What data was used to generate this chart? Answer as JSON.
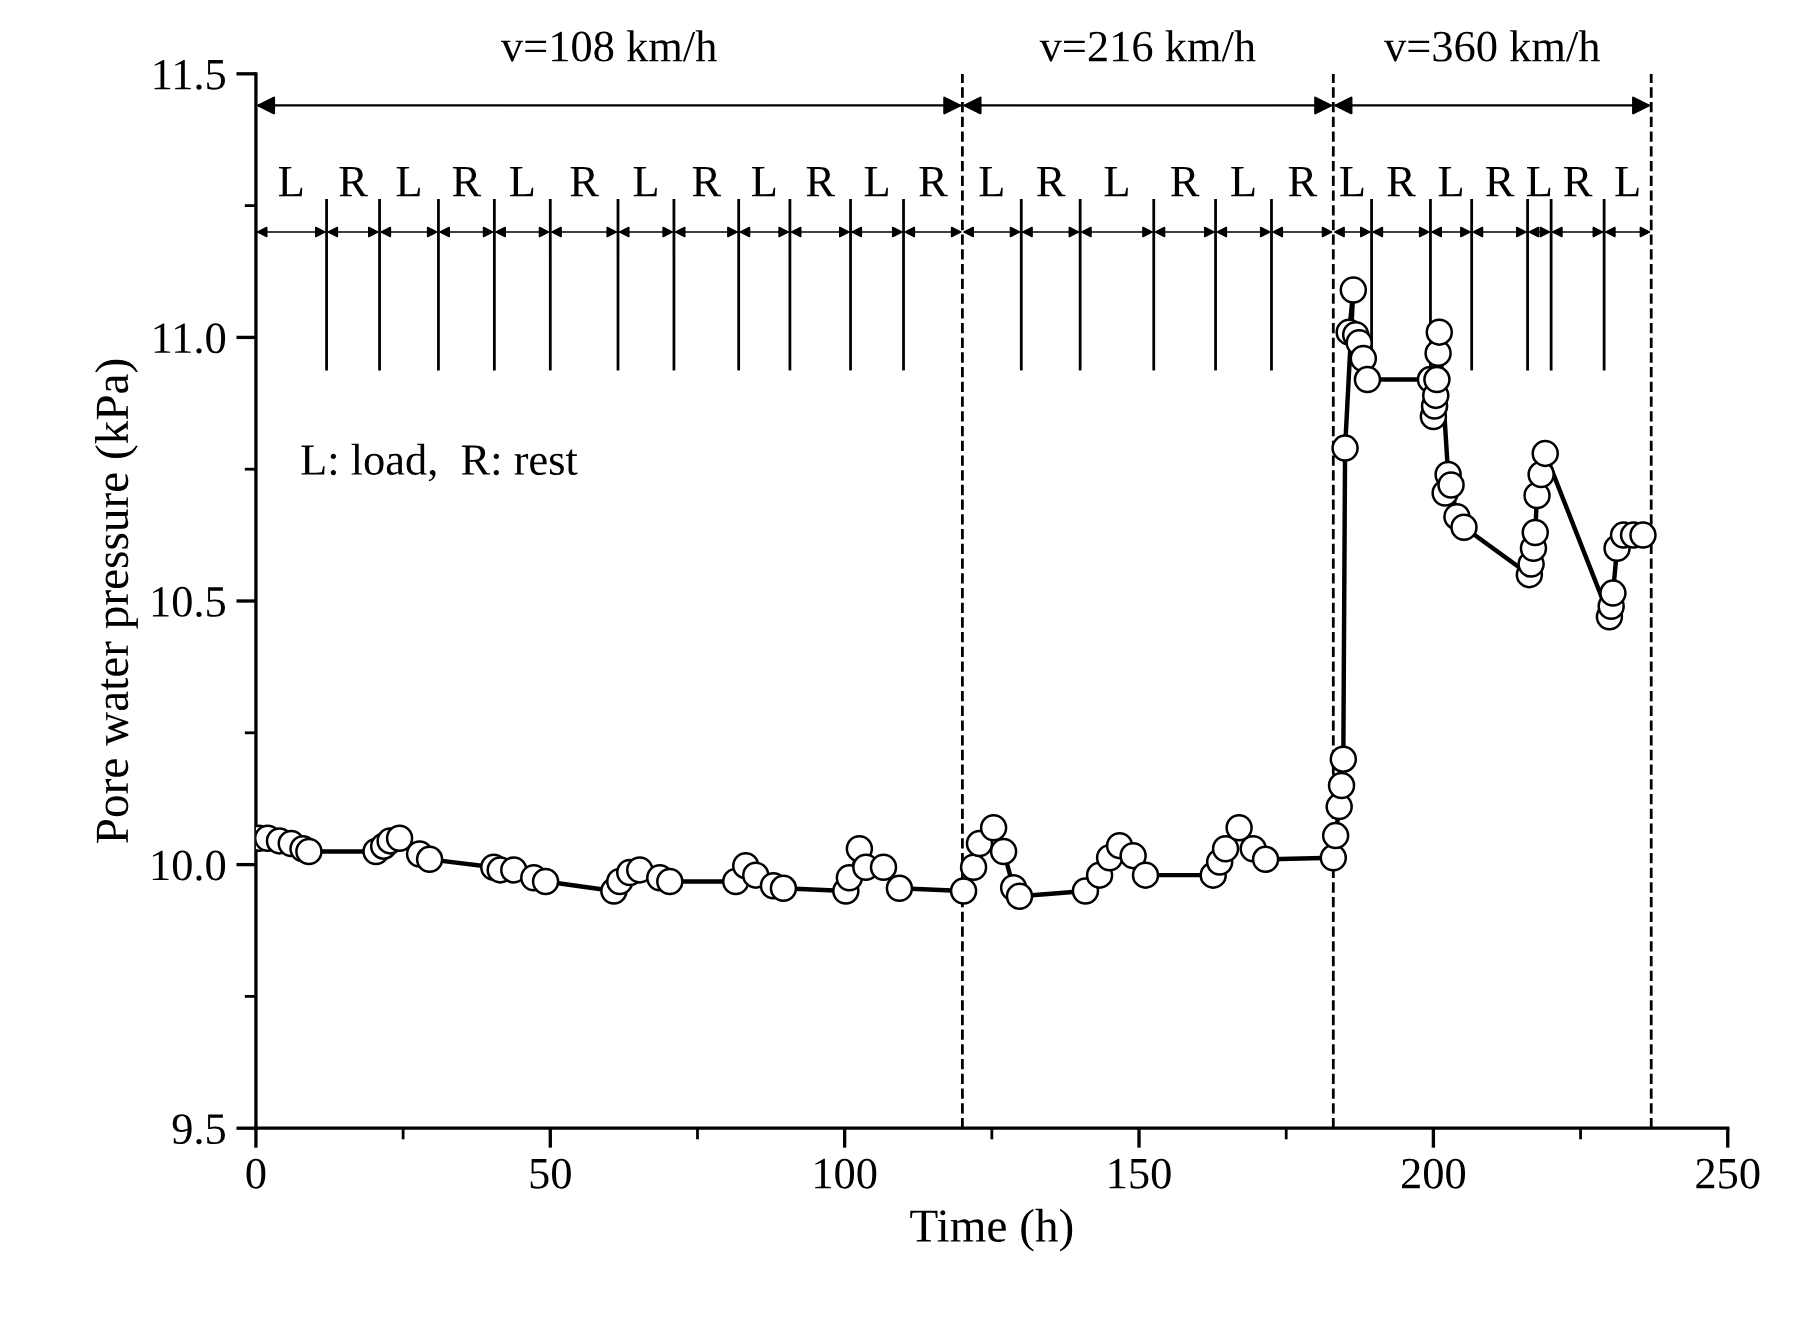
{
  "chart_data": {
    "type": "line",
    "xlabel": "Time (h)",
    "ylabel": "Pore water pressure (kPa)",
    "xlim": [
      0,
      250
    ],
    "xticks": [
      0,
      50,
      100,
      150,
      200,
      250
    ],
    "ylim": [
      9.5,
      11.5
    ],
    "yticks": [
      9.5,
      {
        "value": 10,
        "label": "10.0"
      },
      10.5,
      {
        "value": 11,
        "label": "11.0"
      },
      11.5
    ],
    "marker": "circle",
    "line_style": "solid",
    "grid": false,
    "legend": false,
    "series": [
      {
        "color": "#000000",
        "x": [
          0.5,
          2,
          4,
          6,
          8,
          9,
          20.4,
          21.7,
          22.8,
          24.4,
          27.8,
          29.5,
          40.4,
          41.5,
          43.8,
          47.2,
          49.2,
          60.8,
          61.8,
          63.5,
          65.2,
          68.6,
          70.3,
          81.5,
          83.2,
          84.9,
          87.9,
          89.6,
          100.2,
          100.8,
          102.5,
          103.6,
          106.6,
          109.3,
          120.2,
          121.9,
          122.9,
          125.3,
          127,
          128.7,
          129.7,
          140.9,
          143.3,
          145,
          146.7,
          149,
          151.1,
          162.6,
          163.7,
          164.7,
          167,
          169.4,
          171.5,
          183,
          183.4,
          184,
          184.4,
          184.7,
          185,
          186.4,
          185.7,
          186.8,
          187.4,
          188.1,
          188.8,
          199.5,
          200,
          200.2,
          200.4,
          200.6,
          200.8,
          201,
          202.5,
          202,
          203,
          204,
          205.2,
          216.3,
          216.6,
          217,
          217.3,
          217.6,
          218.3,
          219,
          229.9,
          230.2,
          230.5,
          231.2,
          232.3,
          234,
          235.6
        ],
        "values": [
          10.05,
          10.05,
          10.045,
          10.04,
          10.03,
          10.025,
          10.025,
          10.035,
          10.045,
          10.05,
          10.02,
          10.01,
          9.995,
          9.99,
          9.99,
          9.975,
          9.968,
          9.95,
          9.968,
          9.985,
          9.99,
          9.975,
          9.968,
          9.968,
          9.998,
          9.98,
          9.96,
          9.955,
          9.95,
          9.975,
          10.03,
          9.995,
          9.995,
          9.955,
          9.95,
          9.995,
          10.04,
          10.07,
          10.025,
          9.956,
          9.94,
          9.95,
          9.98,
          10.013,
          10.036,
          10.017,
          9.98,
          9.98,
          10.005,
          10.03,
          10.07,
          10.03,
          10.01,
          10.013,
          10.055,
          10.11,
          10.15,
          10.2,
          10.79,
          11.09,
          11.01,
          11.005,
          10.99,
          10.96,
          10.92,
          10.92,
          10.85,
          10.87,
          10.89,
          10.92,
          10.97,
          11.01,
          10.74,
          10.705,
          10.72,
          10.66,
          10.64,
          10.55,
          10.57,
          10.6,
          10.63,
          10.7,
          10.74,
          10.78,
          10.47,
          10.49,
          10.515,
          10.6,
          10.625,
          10.625,
          10.625
        ]
      }
    ],
    "ref_lines": [
      {
        "axis": "x",
        "value": 120,
        "line_style": "dashed",
        "color": "#000000"
      },
      {
        "axis": "x",
        "value": 183,
        "line_style": "dashed",
        "color": "#000000"
      },
      {
        "axis": "x",
        "value": 237,
        "line_style": "dashed",
        "color": "#000000"
      },
      {
        "axis": "x",
        "value": 12,
        "line_style": "solid",
        "color": "#000000"
      },
      {
        "axis": "x",
        "value": 21,
        "line_style": "solid",
        "color": "#000000"
      },
      {
        "axis": "x",
        "value": 31,
        "line_style": "solid",
        "color": "#000000"
      },
      {
        "axis": "x",
        "value": 40.5,
        "line_style": "solid",
        "color": "#000000"
      },
      {
        "axis": "x",
        "value": 50,
        "line_style": "solid",
        "color": "#000000"
      },
      {
        "axis": "x",
        "value": 61.5,
        "line_style": "solid",
        "color": "#000000"
      },
      {
        "axis": "x",
        "value": 71,
        "line_style": "solid",
        "color": "#000000"
      },
      {
        "axis": "x",
        "value": 82,
        "line_style": "solid",
        "color": "#000000"
      },
      {
        "axis": "x",
        "value": 90.7,
        "line_style": "solid",
        "color": "#000000"
      },
      {
        "axis": "x",
        "value": 101,
        "line_style": "solid",
        "color": "#000000"
      },
      {
        "axis": "x",
        "value": 110,
        "line_style": "solid",
        "color": "#000000"
      },
      {
        "axis": "x",
        "value": 130,
        "line_style": "solid",
        "color": "#000000"
      },
      {
        "axis": "x",
        "value": 140,
        "line_style": "solid",
        "color": "#000000"
      },
      {
        "axis": "x",
        "value": 152.5,
        "line_style": "solid",
        "color": "#000000"
      },
      {
        "axis": "x",
        "value": 163,
        "line_style": "solid",
        "color": "#000000"
      },
      {
        "axis": "x",
        "value": 172.5,
        "line_style": "solid",
        "color": "#000000"
      },
      {
        "axis": "x",
        "value": 189.5,
        "line_style": "solid",
        "color": "#000000"
      },
      {
        "axis": "x",
        "value": 199.5,
        "line_style": "solid",
        "color": "#000000"
      },
      {
        "axis": "x",
        "value": 206.5,
        "line_style": "solid",
        "color": "#000000"
      },
      {
        "axis": "x",
        "value": 216,
        "line_style": "solid",
        "color": "#000000"
      },
      {
        "axis": "x",
        "value": 220,
        "line_style": "solid",
        "color": "#000000"
      },
      {
        "axis": "x",
        "value": 229,
        "line_style": "solid",
        "color": "#000000"
      }
    ],
    "annotations": [
      "L: load,  R: rest",
      "v=108 km/h",
      "v=216 km/h",
      "v=360 km/h",
      "L",
      "R",
      "L",
      "R",
      "L",
      "R",
      "L",
      "R",
      "L",
      "R",
      "L",
      "R",
      "L",
      "R",
      "L",
      "R",
      "L",
      "R",
      "L",
      "R",
      "L",
      "R",
      "L",
      "R",
      "L"
    ]
  }
}
